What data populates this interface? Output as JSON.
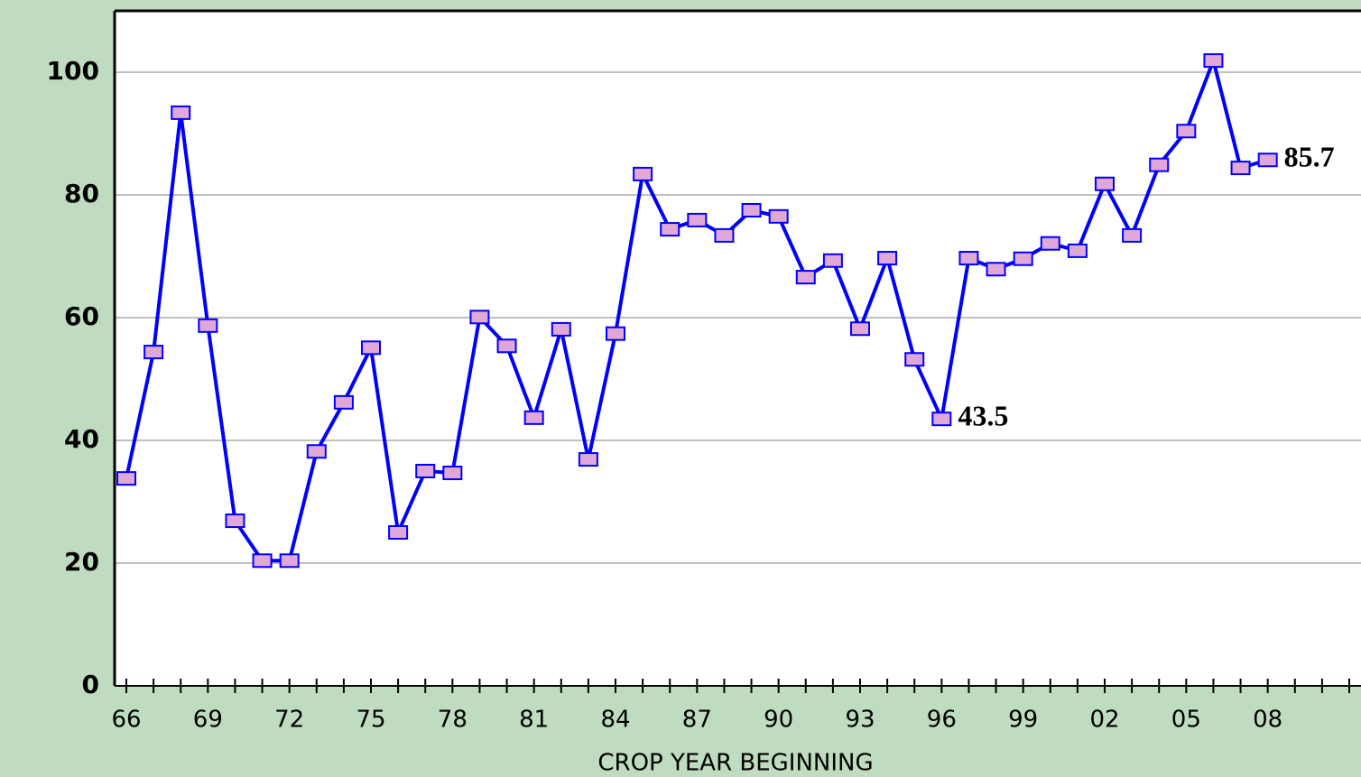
{
  "chart_data": {
    "type": "line",
    "xlabel": "CROP YEAR BEGINNING",
    "categories": [
      "66",
      null,
      null,
      "69",
      null,
      null,
      "72",
      null,
      null,
      "75",
      null,
      null,
      "78",
      null,
      null,
      "81",
      null,
      null,
      "84",
      null,
      null,
      "87",
      null,
      null,
      "90",
      null,
      null,
      "93",
      null,
      null,
      "96",
      null,
      null,
      "99",
      null,
      null,
      "02",
      null,
      null,
      "05",
      null,
      null,
      "08",
      null,
      null,
      null
    ],
    "series": [
      {
        "color": "#0000ff",
        "marker_color": "#e0a8d8",
        "values": [
          33.8,
          54.4,
          93.4,
          58.7,
          26.9,
          20.4,
          20.4,
          38.2,
          46.2,
          55.1,
          25.0,
          35.0,
          34.7,
          60.1,
          55.4,
          43.7,
          58.1,
          36.9,
          57.4,
          83.4,
          74.4,
          75.9,
          73.4,
          77.5,
          76.5,
          66.6,
          69.3,
          58.2,
          69.7,
          53.2,
          43.5,
          69.7,
          67.9,
          69.6,
          72.1,
          70.9,
          81.8,
          73.4,
          84.9,
          90.4,
          101.9,
          84.4,
          85.7,
          null,
          null,
          null
        ],
        "value_labels": [
          null,
          null,
          null,
          null,
          null,
          null,
          null,
          null,
          null,
          null,
          null,
          null,
          null,
          null,
          null,
          null,
          null,
          null,
          null,
          null,
          null,
          null,
          null,
          null,
          null,
          null,
          null,
          null,
          null,
          null,
          "43.5",
          null,
          null,
          null,
          null,
          null,
          null,
          null,
          null,
          null,
          null,
          null,
          "85.7",
          null,
          null,
          null
        ]
      }
    ],
    "ylim": [
      0,
      110
    ],
    "yticks": [
      0,
      20,
      40,
      60,
      80,
      100
    ],
    "grid": true
  }
}
